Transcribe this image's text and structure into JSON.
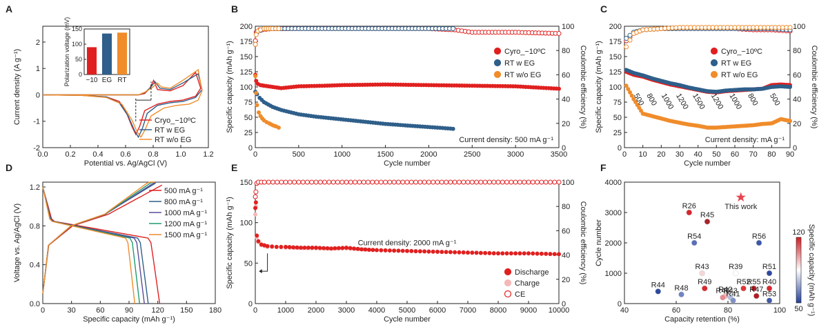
{
  "chart_data": [
    {
      "id": "A",
      "type": "line",
      "panel_label": "A",
      "xlabel": "Potential vs. Ag/AgCl  (V)",
      "ylabel": "Current density (A g⁻¹)",
      "xlim": [
        0,
        1.3
      ],
      "ylim": [
        -2,
        2.6
      ],
      "xticks": [
        "0.0",
        "0.2",
        "0.4",
        "0.6",
        "0.8",
        "1.0",
        "1.2"
      ],
      "yticks": [
        "-2",
        "-1",
        "0",
        "1",
        "2"
      ],
      "legend_position": "bottom-right",
      "series": [
        {
          "name": "Cryo_−10ºC",
          "color": "#e02020",
          "x": [
            0.0,
            0.3,
            0.5,
            0.6,
            0.65,
            0.7,
            0.73,
            0.76,
            0.8,
            0.9,
            1.0,
            1.1,
            1.2,
            1.24,
            1.2,
            1.1,
            1.0,
            0.9,
            0.87,
            0.84,
            0.8,
            0.75,
            0.7,
            0.6,
            0.5,
            0.3,
            0.0
          ],
          "y": [
            0.0,
            -0.02,
            -0.08,
            -0.25,
            -0.6,
            -1.2,
            -1.5,
            -1.2,
            -0.6,
            -0.35,
            -0.25,
            -0.2,
            -0.05,
            0.25,
            0.85,
            0.35,
            0.15,
            0.2,
            0.55,
            0.25,
            0.05,
            0.0,
            0.0,
            0.0,
            0.0,
            0.0,
            0.0
          ]
        },
        {
          "name": "RT w EG",
          "color": "#2f5f8a",
          "x": [
            0.0,
            0.3,
            0.5,
            0.6,
            0.67,
            0.72,
            0.75,
            0.78,
            0.82,
            0.9,
            1.0,
            1.1,
            1.2,
            1.25,
            1.22,
            1.1,
            1.0,
            0.92,
            0.88,
            0.85,
            0.8,
            0.75,
            0.6,
            0.3,
            0.0
          ],
          "y": [
            0.0,
            -0.02,
            -0.08,
            -0.3,
            -0.8,
            -1.35,
            -1.6,
            -1.3,
            -0.7,
            -0.4,
            -0.3,
            -0.25,
            -0.1,
            0.2,
            0.8,
            0.45,
            0.2,
            0.25,
            0.5,
            0.3,
            0.08,
            0.0,
            0.0,
            0.0,
            0.0
          ]
        },
        {
          "name": "RT w/o EG",
          "color": "#f08c2a",
          "x": [
            0.0,
            0.3,
            0.5,
            0.62,
            0.7,
            0.74,
            0.77,
            0.8,
            0.85,
            0.95,
            1.05,
            1.15,
            1.22,
            1.25,
            1.22,
            1.1,
            1.0,
            0.93,
            0.9,
            0.86,
            0.8,
            0.75,
            0.6,
            0.3,
            0.0
          ],
          "y": [
            0.0,
            -0.02,
            -0.1,
            -0.35,
            -0.95,
            -1.4,
            -1.6,
            -1.35,
            -0.8,
            -0.5,
            -0.4,
            -0.35,
            -0.2,
            0.15,
            0.95,
            0.55,
            0.25,
            0.3,
            0.45,
            0.28,
            0.1,
            0.0,
            0.0,
            0.0,
            0.0
          ]
        }
      ],
      "inset": {
        "type": "bar",
        "ylabel": "Polarization voltage (mV)",
        "ylim": [
          0,
          150
        ],
        "yticks": [
          "0",
          "50",
          "100",
          "150"
        ],
        "categories": [
          "−10",
          "EG",
          "RT"
        ],
        "values": [
          90,
          135,
          138
        ],
        "colors": [
          "#e02020",
          "#2f5f8a",
          "#f08c2a"
        ]
      }
    },
    {
      "id": "B",
      "type": "scatter",
      "panel_label": "B",
      "xlabel": "Cycle number",
      "ylabel": "Specific capacity (mAh g⁻¹)",
      "ylabel_right": "Coulombic efficiency (%)",
      "xlim": [
        0,
        3500
      ],
      "ylim": [
        0,
        200
      ],
      "ylim_right": [
        0,
        100
      ],
      "xticks": [
        "0",
        "500",
        "1000",
        "1500",
        "2000",
        "2500",
        "3000",
        "3500"
      ],
      "yticks": [
        "0",
        "25",
        "50",
        "75",
        "100",
        "125",
        "150",
        "175",
        "200"
      ],
      "yticks_right": [
        "0",
        "20",
        "40",
        "60",
        "80",
        "100"
      ],
      "annotation": "Current density: 500 mA g⁻¹",
      "legend_position": "top-right",
      "series": [
        {
          "name": "Cyro_−10ºC",
          "color": "#e02020",
          "x": [
            1,
            10,
            30,
            60,
            100,
            200,
            300,
            500,
            800,
            1000,
            1500,
            2000,
            2500,
            3000,
            3500
          ],
          "y": [
            120,
            110,
            105,
            103,
            102,
            100,
            98,
            101,
            102,
            103,
            104,
            103,
            102,
            101,
            97
          ],
          "ce_x": [
            1,
            10,
            50,
            200,
            500,
            1000,
            1500,
            2000,
            2300,
            2500,
            3000,
            3500
          ],
          "ce_y": [
            88,
            95,
            97,
            98,
            98,
            98,
            98,
            98,
            97,
            95,
            95,
            94
          ]
        },
        {
          "name": "RT w EG",
          "color": "#2f5f8a",
          "x": [
            1,
            20,
            50,
            100,
            200,
            300,
            500,
            700,
            900,
            1100,
            1300,
            1500,
            1700,
            1900,
            2100,
            2280
          ],
          "y": [
            92,
            88,
            82,
            75,
            67,
            62,
            55,
            51,
            48,
            45,
            42,
            39,
            37,
            35,
            33,
            31
          ],
          "ce_x": [
            1,
            20,
            100,
            500,
            1000,
            1500,
            2000,
            2280
          ],
          "ce_y": [
            85,
            95,
            98,
            98,
            98,
            98,
            98,
            98
          ]
        },
        {
          "name": "RT w/o EG",
          "color": "#f08c2a",
          "x": [
            1,
            10,
            20,
            40,
            60,
            80,
            100,
            130,
            160,
            200,
            240,
            270
          ],
          "y": [
            118,
            90,
            70,
            58,
            52,
            48,
            45,
            42,
            40,
            37,
            35,
            33
          ],
          "ce_x": [
            1,
            10,
            30,
            60,
            100,
            150,
            200,
            270
          ],
          "ce_y": [
            85,
            93,
            96,
            97,
            98,
            98,
            98,
            98
          ]
        }
      ]
    },
    {
      "id": "C",
      "type": "scatter",
      "panel_label": "C",
      "xlabel": "Cycle number",
      "ylabel": "Specific capacity (mAh g⁻¹)",
      "ylabel_right": "Coulombic efficiency (%)",
      "xlim": [
        0,
        90
      ],
      "ylim": [
        0,
        200
      ],
      "ylim_right": [
        0,
        100
      ],
      "xticks": [
        "0",
        "10",
        "20",
        "30",
        "40",
        "50",
        "60",
        "70",
        "80",
        "90"
      ],
      "yticks": [
        "0",
        "25",
        "50",
        "75",
        "100",
        "125",
        "150",
        "175",
        "200"
      ],
      "yticks_right": [
        "0",
        "20",
        "40",
        "60",
        "80",
        "100"
      ],
      "annotation": "Current density: mA g⁻¹",
      "rate_labels": [
        "500",
        "800",
        "1000",
        "1200",
        "1500",
        "1200",
        "1000",
        "800",
        "500"
      ],
      "legend_position": "top-right",
      "series": [
        {
          "name": "Cyro_−10ºC",
          "color": "#e02020",
          "x": [
            1,
            5,
            10,
            15,
            20,
            25,
            30,
            35,
            40,
            45,
            50,
            55,
            60,
            65,
            70,
            75,
            80,
            85,
            90
          ],
          "y": [
            125,
            120,
            117,
            112,
            108,
            104,
            101,
            98,
            95,
            92,
            91,
            93,
            94,
            95,
            96,
            97,
            103,
            104,
            103
          ],
          "ce_x": [
            1,
            5,
            10,
            20,
            30,
            40,
            50,
            60,
            70,
            80,
            90
          ],
          "ce_y": [
            88,
            94,
            97,
            98,
            98,
            98,
            98,
            98,
            97,
            97,
            96
          ]
        },
        {
          "name": "RT w EG",
          "color": "#2f5f8a",
          "x": [
            1,
            5,
            10,
            15,
            20,
            25,
            30,
            35,
            40,
            45,
            50,
            55,
            60,
            65,
            70,
            75,
            80,
            85,
            90
          ],
          "y": [
            128,
            123,
            119,
            114,
            110,
            106,
            103,
            99,
            96,
            93,
            92,
            94,
            95,
            96,
            96,
            97,
            100,
            101,
            100
          ],
          "ce_x": [
            1,
            5,
            10,
            20,
            30,
            40,
            50,
            60,
            70,
            80,
            90
          ],
          "ce_y": [
            90,
            95,
            97,
            98,
            98,
            98,
            98,
            98,
            98,
            98,
            97
          ]
        },
        {
          "name": "RT w/o EG",
          "color": "#f08c2a",
          "x": [
            1,
            5,
            10,
            15,
            20,
            25,
            30,
            35,
            40,
            45,
            50,
            55,
            60,
            65,
            70,
            75,
            80,
            85,
            90
          ],
          "y": [
            102,
            80,
            56,
            52,
            48,
            44,
            41,
            38,
            36,
            33,
            33,
            34,
            35,
            36,
            37,
            39,
            40,
            47,
            44
          ],
          "ce_x": [
            1,
            5,
            10,
            20,
            30,
            40,
            50,
            60,
            70,
            80,
            90
          ],
          "ce_y": [
            83,
            94,
            97,
            98,
            99,
            99,
            99,
            99,
            99,
            99,
            99
          ]
        }
      ]
    },
    {
      "id": "D",
      "type": "line",
      "panel_label": "D",
      "xlabel": "Specific capacity (mAh g⁻¹)",
      "ylabel": "Voltage vs. Ag/AgCl  (V)",
      "xlim": [
        0,
        180
      ],
      "ylim": [
        0,
        1.25
      ],
      "xticks": [
        "0",
        "30",
        "60",
        "90",
        "120",
        "150",
        "180"
      ],
      "yticks": [
        "0.0",
        "0.4",
        "0.8",
        "1.2"
      ],
      "legend_position": "top-right",
      "series": [
        {
          "name": "500 mA g⁻¹",
          "color": "#e02020",
          "capacity": 122
        },
        {
          "name": "800 mA g⁻¹",
          "color": "#2f5f8a",
          "capacity": 110
        },
        {
          "name": "1000 mA g⁻¹",
          "color": "#5b4c9a",
          "capacity": 106
        },
        {
          "name": "1200 mA g⁻¹",
          "color": "#1f9a6e",
          "capacity": 101
        },
        {
          "name": "1500 mA g⁻¹",
          "color": "#f08c2a",
          "capacity": 96
        }
      ]
    },
    {
      "id": "E",
      "type": "scatter",
      "panel_label": "E",
      "xlabel": "Cycle number",
      "ylabel": "Specific capacity (mAh g⁻¹)",
      "ylabel_right": "Coulombic efficiency (%)",
      "xlim": [
        0,
        10000
      ],
      "ylim": [
        0,
        150
      ],
      "ylim_right": [
        0,
        100
      ],
      "xticks": [
        "0",
        "1000",
        "2000",
        "3000",
        "4000",
        "5000",
        "6000",
        "7000",
        "8000",
        "9000",
        "10000"
      ],
      "yticks": [
        "0",
        "50",
        "100",
        "150"
      ],
      "yticks_right": [
        "0",
        "20",
        "40",
        "60",
        "80",
        "100"
      ],
      "annotation": "Current density: 2000 mA g⁻¹",
      "legend_position": "bottom-right",
      "series": [
        {
          "name": "Discharge",
          "color": "#e02020",
          "x": [
            1,
            20,
            50,
            100,
            200,
            400,
            700,
            1000,
            1500,
            2000,
            2500,
            3000,
            3500,
            4000,
            5000,
            6000,
            7000,
            8000,
            9000,
            10000
          ],
          "y": [
            118,
            125,
            84,
            77,
            73,
            71,
            70,
            70,
            69,
            69,
            68,
            69,
            67,
            66,
            65,
            64,
            63,
            62,
            62,
            61
          ]
        },
        {
          "name": "Charge",
          "color": "#f5b8b8",
          "x": [
            1,
            20,
            50,
            100,
            200,
            400,
            700,
            1000,
            2000,
            3000,
            4000,
            5000,
            6000,
            7000,
            8000,
            9000,
            10000
          ],
          "y": [
            110,
            120,
            82,
            76,
            72,
            70,
            70,
            69,
            68,
            68,
            66,
            65,
            64,
            63,
            62,
            62,
            61
          ]
        },
        {
          "name": "CE",
          "color": "#e02020",
          "x": [
            1,
            20,
            50,
            100,
            300,
            1000,
            2000,
            3000,
            4000,
            5000,
            6000,
            7000,
            8000,
            9000,
            10000
          ],
          "y": [
            88,
            92,
            99,
            100,
            100,
            100,
            100,
            100,
            100,
            100,
            100,
            100,
            100,
            100,
            100
          ]
        }
      ]
    },
    {
      "id": "F",
      "type": "scatter",
      "panel_label": "F",
      "xlabel": "Capacity retention (%)",
      "ylabel": "Cycle number",
      "colorbar_label": "Specific capacity (mAh g⁻¹)",
      "colorbar_ticks": [
        "50",
        "120"
      ],
      "xlim": [
        40,
        100
      ],
      "ylim": [
        0,
        4000
      ],
      "xticks": [
        "40",
        "60",
        "80",
        "100"
      ],
      "yticks": [
        "0",
        "1000",
        "2000",
        "3000",
        "4000"
      ],
      "points": [
        {
          "label": "This work",
          "x": 85,
          "y": 3500,
          "marker": "star",
          "color": "#e8434f"
        },
        {
          "label": "R26",
          "x": 65,
          "y": 3000,
          "color": "#d6262c"
        },
        {
          "label": "R45",
          "x": 72,
          "y": 2700,
          "color": "#a8232a"
        },
        {
          "label": "R54",
          "x": 67,
          "y": 2000,
          "color": "#5a6fb8"
        },
        {
          "label": "R56",
          "x": 92,
          "y": 2000,
          "color": "#3c56a8"
        },
        {
          "label": "R43",
          "x": 70,
          "y": 1000,
          "color": "#f6d6d6"
        },
        {
          "label": "R39",
          "x": 83,
          "y": 1000,
          "color": "#ffffff"
        },
        {
          "label": "R51",
          "x": 96,
          "y": 1000,
          "color": "#3049a0"
        },
        {
          "label": "R44",
          "x": 53,
          "y": 400,
          "color": "#2c4a9e"
        },
        {
          "label": "R48",
          "x": 62,
          "y": 300,
          "color": "#6f84c4"
        },
        {
          "label": "R49",
          "x": 71,
          "y": 500,
          "color": "#d8282e"
        },
        {
          "label": "R42",
          "x": 79,
          "y": 250,
          "color": "#f2b5b8"
        },
        {
          "label": "R46",
          "x": 78,
          "y": 200,
          "color": "#e58a90"
        },
        {
          "label": "R43",
          "x": 81,
          "y": 200,
          "color": "#b3bfe0"
        },
        {
          "label": "R41",
          "x": 82,
          "y": 100,
          "color": "#7f90c8"
        },
        {
          "label": "R52",
          "x": 86,
          "y": 500,
          "color": "#e0343a"
        },
        {
          "label": "R55",
          "x": 90,
          "y": 500,
          "color": "#c41f25"
        },
        {
          "label": "R47",
          "x": 91,
          "y": 250,
          "color": "#b11d22"
        },
        {
          "label": "R40",
          "x": 96,
          "y": 500,
          "color": "#d42a30"
        },
        {
          "label": "R53",
          "x": 96,
          "y": 100,
          "color": "#4058a8"
        }
      ]
    }
  ]
}
